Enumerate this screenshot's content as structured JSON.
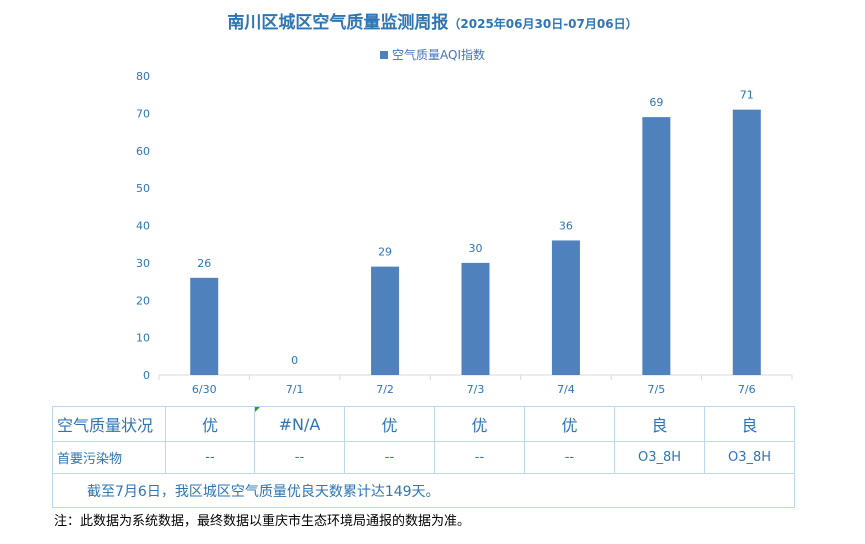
{
  "title": {
    "main": "南川区城区空气质量监测周报",
    "sub": "（2025年06月30日-07月06日）"
  },
  "legend": {
    "label": "空气质量AQI指数"
  },
  "colors": {
    "bar": "#4F81BD",
    "text": "#2E75B6",
    "grid": "#D9D9D9",
    "border": "#BDD7EE"
  },
  "chart_data": {
    "type": "bar",
    "categories": [
      "6/30",
      "7/1",
      "7/2",
      "7/3",
      "7/4",
      "7/5",
      "7/6"
    ],
    "series": [
      {
        "name": "空气质量AQI指数",
        "values": [
          26,
          0,
          29,
          30,
          36,
          69,
          71
        ]
      }
    ],
    "data_labels": [
      "26",
      "0",
      "29",
      "30",
      "36",
      "69",
      "71"
    ],
    "yticks": [
      "0",
      "10",
      "20",
      "30",
      "40",
      "50",
      "60",
      "70",
      "80"
    ],
    "ylim": [
      0,
      80
    ],
    "grid": false,
    "legend_position": "top-center"
  },
  "table": {
    "row1": {
      "header": "空气质量状况",
      "cells": [
        "优",
        "#N/A",
        "优",
        "优",
        "优",
        "良",
        "良"
      ]
    },
    "row2": {
      "header": "首要污染物",
      "cells": [
        "--",
        "--",
        "--",
        "--",
        "--",
        "O3_8H",
        "O3_8H"
      ]
    },
    "summary": "截至7月6日，我区城区空气质量优良天数累计达149天。"
  },
  "note": "注：此数据为系统数据，最终数据以重庆市生态环境局通报的数据为准。"
}
